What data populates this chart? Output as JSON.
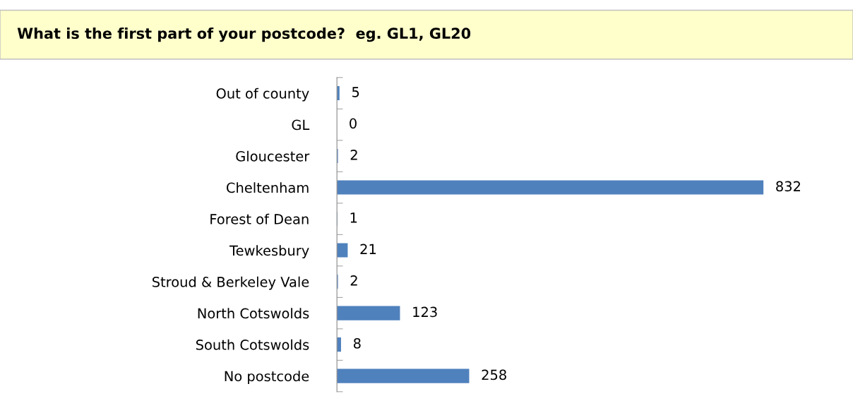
{
  "chart_data": {
    "type": "bar",
    "orientation": "horizontal",
    "title": "What is the first part of your postcode?  eg. GL1, GL20",
    "categories": [
      "Out of county",
      "GL",
      "Gloucester",
      "Cheltenham",
      "Forest of Dean",
      "Tewkesbury",
      "Stroud & Berkeley Vale",
      "North Cotswolds",
      "South Cotswolds",
      "No postcode"
    ],
    "values": [
      5,
      0,
      2,
      832,
      1,
      21,
      2,
      123,
      8,
      258
    ],
    "color": "#4f81bd",
    "data_labels": true,
    "grid": false,
    "legend": false
  }
}
